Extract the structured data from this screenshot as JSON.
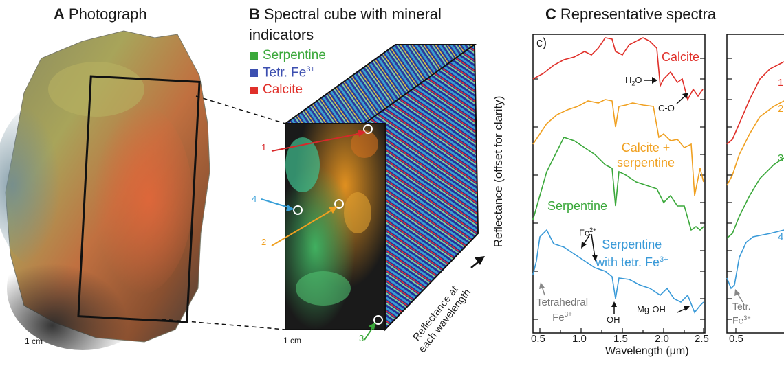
{
  "panel_a": {
    "letter": "A",
    "title": "Photograph",
    "scale": "1 cm"
  },
  "panel_b": {
    "letter": "B",
    "title_line1": "Spectral cube with mineral",
    "title_line2": "indicators",
    "legend": [
      {
        "label": "Serpentine",
        "color": "#3aa83a"
      },
      {
        "label": "Tetr. Fe",
        "sup": "3+",
        "color": "#3c4fb0"
      },
      {
        "label": "Calcite",
        "color": "#e0302a"
      }
    ],
    "scale": "1 cm",
    "depth_label_line1": "Reflectance at",
    "depth_label_line2": "each wavelength",
    "points": [
      {
        "label": "1",
        "color": "#d8282a"
      },
      {
        "label": "2",
        "color": "#f0a020"
      },
      {
        "label": "3",
        "color": "#3aa83a"
      },
      {
        "label": "4",
        "color": "#3aa0d8"
      }
    ]
  },
  "panel_c": {
    "letter": "C",
    "title": "Representative spectra",
    "subpanel": "c)",
    "ylabel": "Reflectance (offset for clarity)",
    "xlabel": "Wavelength (μm)",
    "xticks": [
      "0.5",
      "1.0",
      "1.5",
      "2.0",
      "2.5"
    ],
    "inset_xticks": [
      "0.5"
    ],
    "inset_labels": [
      "1",
      "2",
      "3",
      "4"
    ],
    "inset_annotation_line1": "Tetr.",
    "inset_annotation_line2": "Fe",
    "inset_annotation_sup": "3+",
    "series_labels": {
      "calcite": "Calcite",
      "calcite_serp_1": "Calcite +",
      "calcite_serp_2": "serpentine",
      "serpentine": "Serpentine",
      "serp_fe_1": "Serpentine",
      "serp_fe_2": "with tetr. Fe",
      "serp_fe_sup": "3+"
    },
    "annotations": {
      "h2o": "H",
      "h2o_sub": "2",
      "h2o_end": "O",
      "co": "C-O",
      "fe2": "Fe",
      "fe2_sup": "2+",
      "tetrahedral_1": "Tetrahedral",
      "tetrahedral_2": "Fe",
      "tetrahedral_sup": "3+",
      "oh": "OH",
      "mgoh": "Mg-OH"
    },
    "colors": {
      "calcite": "#e0302a",
      "calcite_serp": "#f0a020",
      "serpentine": "#3aa83a",
      "serp_fe": "#3a9ad8"
    }
  }
}
